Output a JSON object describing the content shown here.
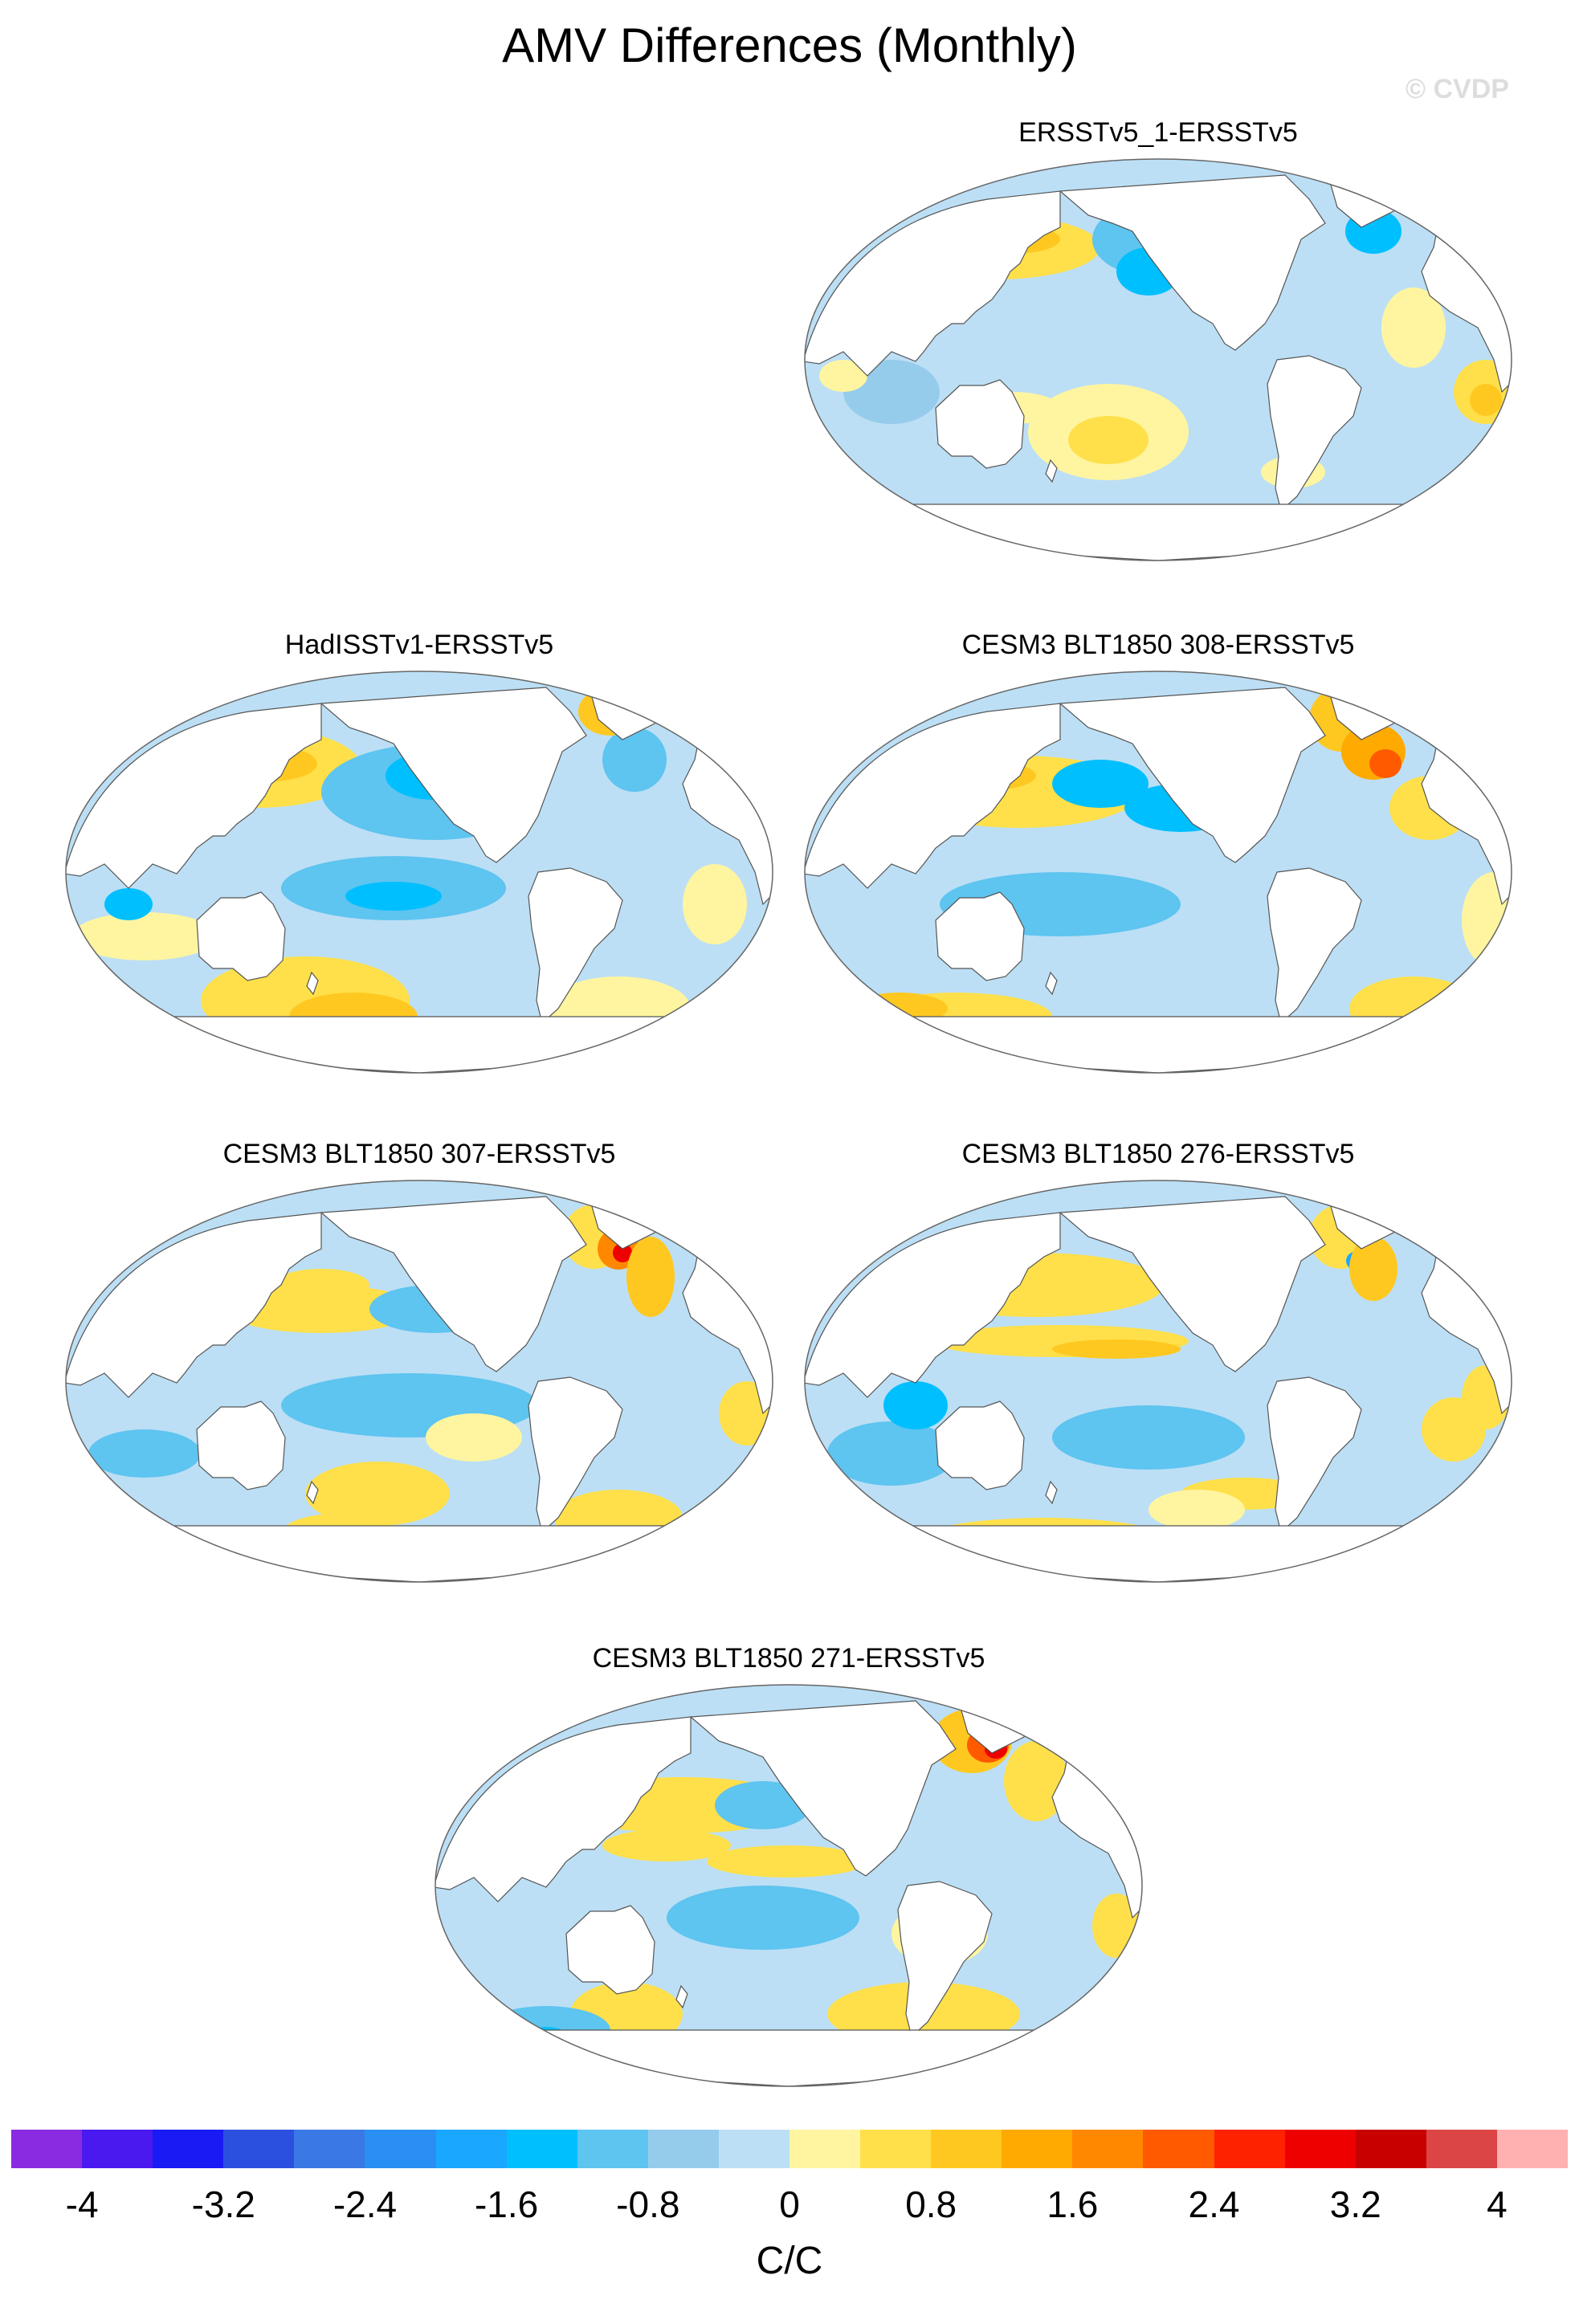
{
  "title": "AMV Differences (Monthly)",
  "watermark": "© CVDP",
  "colors": {
    "ocean_base": "#bcdff5",
    "land": "#ffffff",
    "coast": "#555555",
    "border": "#666666"
  },
  "panels": [
    {
      "label": "ERSSTv5_1-ERSSTv5",
      "variant": 0
    },
    {
      "label": "HadISSTv1-ERSSTv5",
      "variant": 1
    },
    {
      "label": "CESM3 BLT1850 308-ERSSTv5",
      "variant": 2
    },
    {
      "label": "CESM3 BLT1850 307-ERSSTv5",
      "variant": 3
    },
    {
      "label": "CESM3 BLT1850 276-ERSSTv5",
      "variant": 4
    },
    {
      "label": "CESM3 BLT1850 271-ERSSTv5",
      "variant": 5
    }
  ],
  "colorbar": {
    "units": "C/C",
    "colors": [
      "#8a2be2",
      "#4a19f0",
      "#1a1af5",
      "#2b50e0",
      "#3a78e6",
      "#2a8ff2",
      "#1aa7ff",
      "#00bfff",
      "#5ec4f0",
      "#96cceb",
      "#bcdff5",
      "#fff5a0",
      "#ffe04a",
      "#ffc820",
      "#ffaa00",
      "#ff8800",
      "#ff5a00",
      "#ff2200",
      "#ee0000",
      "#c80000",
      "#dc4545",
      "#ffb0b0"
    ],
    "ticks": [
      "-4",
      "-3.2",
      "-2.4",
      "-1.6",
      "-0.8",
      "0",
      "0.8",
      "1.6",
      "2.4",
      "3.2",
      "4"
    ]
  }
}
